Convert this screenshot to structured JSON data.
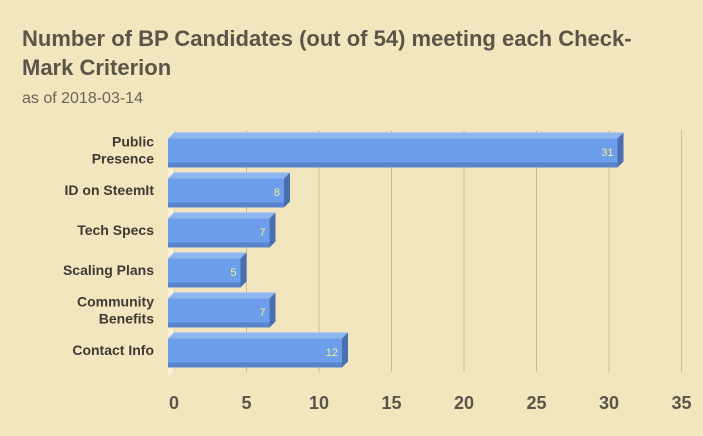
{
  "chart_data": {
    "type": "bar",
    "orientation": "horizontal",
    "style": "3d",
    "title": "Number of BP Candidates (out of 54) meeting each Check-Mark Criterion",
    "subtitle": "as of 2018-03-14",
    "categories": [
      [
        "Public",
        "Presence"
      ],
      [
        "ID on SteemIt"
      ],
      [
        "Tech Specs"
      ],
      [
        "Scaling Plans"
      ],
      [
        "Community",
        "Benefits"
      ],
      [
        "Contact Info"
      ]
    ],
    "values": [
      31,
      8,
      7,
      5,
      7,
      12
    ],
    "data_labels": [
      "31",
      "8",
      "7",
      "5",
      "7",
      "12"
    ],
    "xlim": [
      0,
      35
    ],
    "xticks": [
      0,
      5,
      10,
      15,
      20,
      25,
      30,
      35
    ],
    "xtick_labels": [
      "0",
      "5",
      "10",
      "15",
      "20",
      "25",
      "30",
      "35"
    ],
    "grid": true,
    "legend": "none",
    "colors": {
      "bar_front": "#6d9eeb",
      "bar_top": "#8fb6f1",
      "bar_side": "#4a6fb0",
      "background": "#f2e6be",
      "gridline": "#cbbf98",
      "data_label": "#f2f08a"
    }
  }
}
